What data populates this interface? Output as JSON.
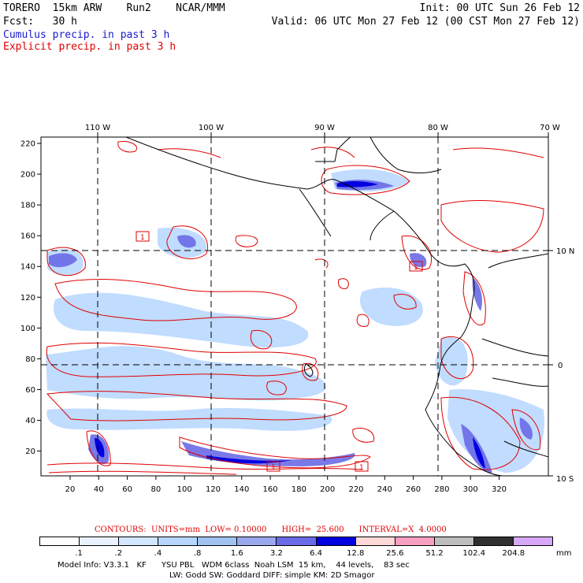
{
  "header": {
    "line1_left": "TORERO  15km ARW    Run2    NCAR/MMM",
    "line1_right": "Init: 00 UTC Sun 26 Feb 12",
    "line2_left": "Fcst:   30 h",
    "line2_right": "Valid: 06 UTC Mon 27 Feb 12 (00 CST Mon 27 Feb 12)",
    "legend_cumulus": "Cumulus precip. in past 3 h",
    "legend_explicit": "Explicit precip. in past 3 h"
  },
  "map": {
    "top_labels": [
      "110 W",
      "100 W",
      "90 W",
      "80 W",
      "70 W"
    ],
    "right_labels": [
      "10 N",
      "0",
      "10 S"
    ],
    "left_ticks": [
      "220",
      "200",
      "180",
      "160",
      "140",
      "120",
      "100",
      "80",
      "60",
      "40",
      "20"
    ],
    "bottom_ticks": [
      "20",
      "40",
      "60",
      "80",
      "100",
      "120",
      "140",
      "160",
      "180",
      "200",
      "220",
      "240",
      "260",
      "280",
      "300",
      "320"
    ],
    "box_labels": [
      "1",
      "1",
      "1",
      "1"
    ],
    "colors": {
      "cumulus": "#1a1acc",
      "explicit": "#e00000",
      "coast": "#000000"
    }
  },
  "contours_line": "CONTOURS:  UNITS=mm  LOW= 0.10000      HIGH=  25.600      INTERVAL=X  4.0000",
  "colorbar": {
    "labels": [
      ".1",
      ".2",
      ".4",
      ".8",
      "1.6",
      "3.2",
      "6.4",
      "12.8",
      "25.6",
      "51.2",
      "102.4",
      "204.8"
    ],
    "unit": "mm",
    "colors": [
      "#ffffff",
      "#eaf2ff",
      "#d2e6ff",
      "#b6d6ff",
      "#a2c2f2",
      "#9aa8ee",
      "#6a6ae6",
      "#0000e0",
      "#ffd8d8",
      "#f8a0c0",
      "#bebebe",
      "#303030",
      "#d8a8f8"
    ]
  },
  "model_info": {
    "line1": "Model Info: V3.3.1   KF      YSU PBL   WDM 6class  Noah LSM  15 km,    44 levels,    83 sec",
    "line2": "LW: Godd SW: Goddard DIFF: simple KM: 2D Smagor"
  }
}
